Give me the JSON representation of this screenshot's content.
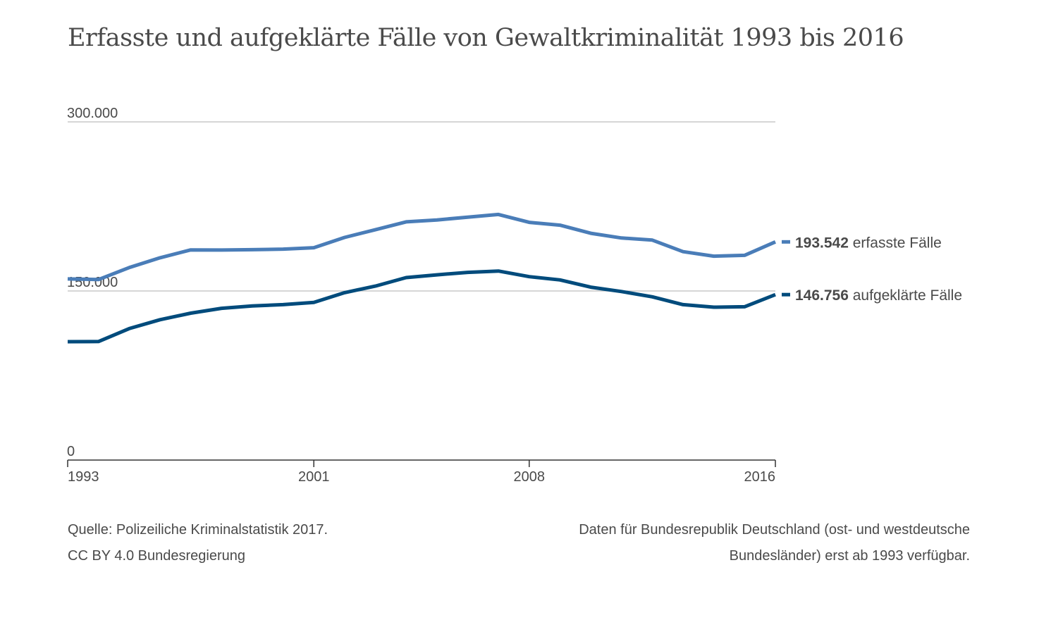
{
  "chart_data": {
    "type": "line",
    "title": "Erfasste und aufgeklärte Fälle von Gewaltkriminalität 1993 bis 2016",
    "xlabel": "",
    "ylabel": "",
    "ylim": [
      0,
      300000
    ],
    "yticks": [
      "0",
      "150.000",
      "300.000"
    ],
    "ytick_values": [
      0,
      150000,
      300000
    ],
    "xticks": [
      "1993",
      "2001",
      "2008",
      "2016"
    ],
    "xtick_values": [
      1993,
      2001,
      2008,
      2016
    ],
    "grid": true,
    "x": [
      1993,
      1994,
      1995,
      1996,
      1997,
      1998,
      1999,
      2000,
      2001,
      2002,
      2003,
      2004,
      2005,
      2006,
      2007,
      2008,
      2009,
      2010,
      2011,
      2012,
      2013,
      2014,
      2015,
      2016
    ],
    "series": [
      {
        "name": "erfasste Fälle",
        "color": "#4a7db8",
        "end_value": "193.542",
        "end_label": "erfasste Fälle",
        "values": [
          160680,
          160100,
          170750,
          179450,
          186450,
          186300,
          186650,
          187100,
          188400,
          197500,
          204300,
          211300,
          213000,
          215500,
          217900,
          210900,
          208400,
          201200,
          197000,
          195100,
          184900,
          180900,
          181600,
          193542
        ]
      },
      {
        "name": "aufgeklärte Fälle",
        "color": "#004b7c",
        "end_value": "146.756",
        "end_label": "aufgeklärte Fälle",
        "values": [
          105000,
          105100,
          116600,
          124500,
          130300,
          134600,
          136700,
          137900,
          139900,
          148500,
          154300,
          161900,
          164300,
          166500,
          167700,
          162700,
          159800,
          153400,
          149500,
          144800,
          137900,
          135600,
          136000,
          146756
        ]
      }
    ]
  },
  "source": {
    "line1": "Quelle: Polizeiliche Kriminalstatistik 2017.",
    "line2": "CC BY 4.0 Bundesregierung"
  },
  "note": {
    "line1": "Daten für Bundesrepublik Deutschland (ost- und westdeutsche",
    "line2": "Bundesländer) erst ab 1993 verfügbar."
  },
  "colors": {
    "grid": "#c8c8c8",
    "text": "#4a4a4a"
  }
}
